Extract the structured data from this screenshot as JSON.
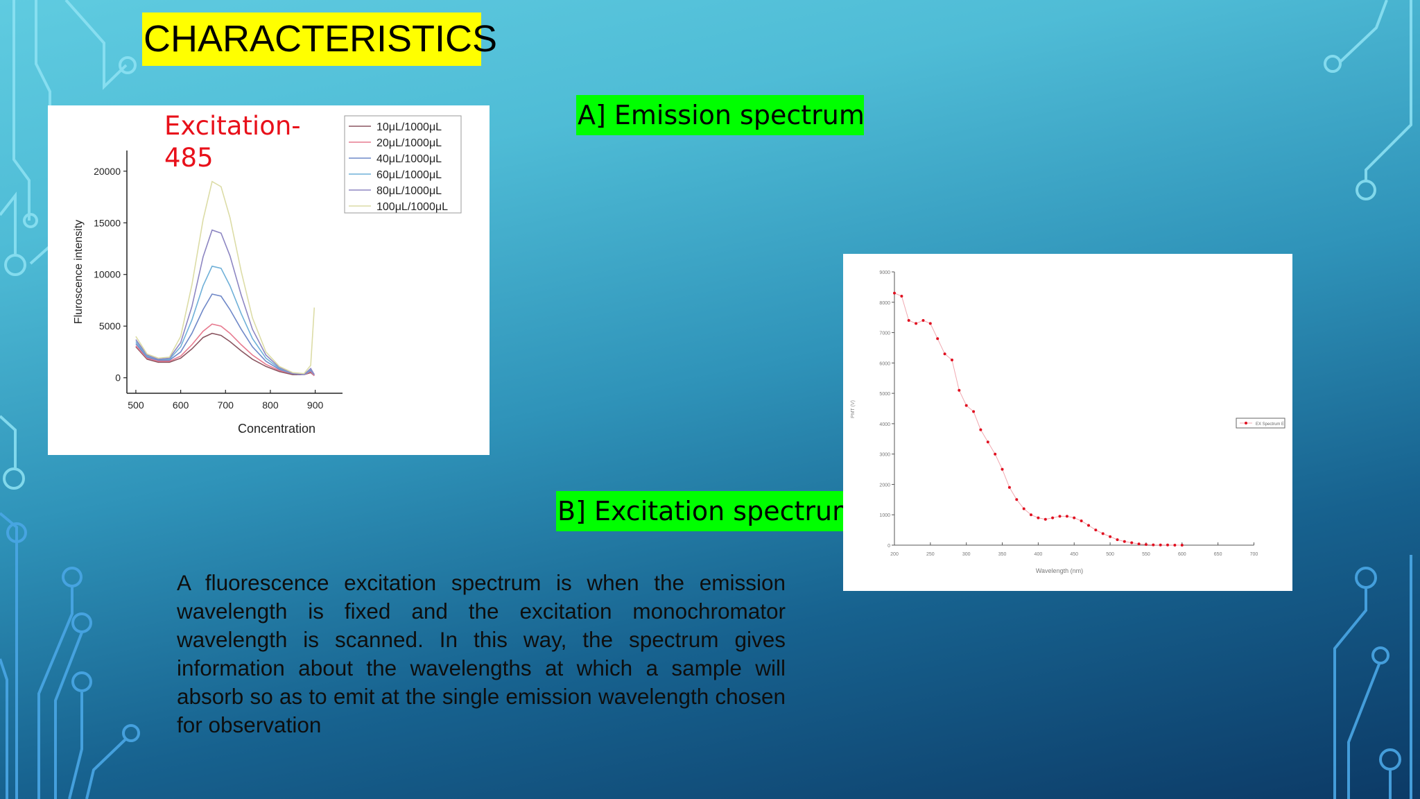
{
  "slide": {
    "title": "CHARACTERISTICS",
    "label_a": "A] Emission spectrum",
    "label_b": "B] Excitation spectrum",
    "paragraph": "A fluorescence excitation spectrum is when the emission wavelength is fixed and the excitation monochromator wavelength is scanned. In this way, the spectrum gives information about the wavelengths at which a sample will absorb so as to emit at the single emission wavelength chosen for observation"
  },
  "colors": {
    "title_bg": "#ffff00",
    "label_bg": "#00ff00",
    "annotation": "#e8101a"
  },
  "chart_data": [
    {
      "type": "line",
      "title": "",
      "annotation": [
        "Excitation-",
        "485"
      ],
      "xlabel": "Concentration",
      "ylabel": "Fluroscence intensity",
      "xlim": [
        480,
        930
      ],
      "ylim": [
        -1500,
        22000
      ],
      "xticks": [
        500,
        600,
        700,
        800,
        900
      ],
      "yticks": [
        0,
        5000,
        10000,
        15000,
        20000
      ],
      "grid": false,
      "legend": "top-right",
      "x": [
        500,
        525,
        550,
        575,
        600,
        625,
        650,
        670,
        690,
        710,
        735,
        760,
        790,
        820,
        850,
        875,
        890,
        898
      ],
      "series": [
        {
          "name": "10μL/1000μL",
          "color": "#8a5560",
          "values": [
            3000,
            1800,
            1500,
            1500,
            1900,
            2800,
            3900,
            4300,
            4100,
            3500,
            2600,
            1800,
            1100,
            600,
            300,
            300,
            500,
            200
          ]
        },
        {
          "name": "20μL/1000μL",
          "color": "#e77a8f",
          "values": [
            3100,
            1900,
            1600,
            1600,
            2100,
            3200,
            4500,
            5200,
            5000,
            4300,
            3200,
            2200,
            1300,
            700,
            400,
            300,
            600,
            200
          ]
        },
        {
          "name": "40μL/1000μL",
          "color": "#6f88c8",
          "values": [
            3300,
            2000,
            1700,
            1700,
            2500,
            4300,
            6600,
            8100,
            7900,
            6600,
            4700,
            3000,
            1600,
            800,
            400,
            300,
            700,
            300
          ]
        },
        {
          "name": "60μL/1000μL",
          "color": "#6fb0d8",
          "values": [
            3500,
            2100,
            1800,
            1800,
            3000,
            5600,
            8900,
            10800,
            10600,
            8900,
            6200,
            3800,
            1900,
            900,
            400,
            300,
            800,
            300
          ]
        },
        {
          "name": "80μL/1000μL",
          "color": "#8d86c2",
          "values": [
            3700,
            2200,
            1800,
            1900,
            3400,
            6900,
            11700,
            14300,
            14000,
            11800,
            8000,
            4700,
            2200,
            1000,
            400,
            300,
            900,
            300
          ]
        },
        {
          "name": "100μL/1000μL",
          "color": "#dcdca6",
          "values": [
            4000,
            2300,
            1900,
            2000,
            4000,
            9000,
            15300,
            19000,
            18500,
            15500,
            10300,
            5800,
            2500,
            1100,
            500,
            400,
            1200,
            6800
          ]
        }
      ]
    },
    {
      "type": "scatter",
      "title": "",
      "xlabel": "Wavelength (nm)",
      "ylabel": "PMT (V)",
      "xlim": [
        200,
        660
      ],
      "ylim": [
        0,
        9000
      ],
      "xticks": [
        200,
        250,
        300,
        350,
        400,
        450,
        500,
        550,
        600,
        650,
        700
      ],
      "yticks": [
        0,
        1000,
        2000,
        3000,
        4000,
        5000,
        6000,
        7000,
        8000,
        9000
      ],
      "grid": false,
      "legend": "right",
      "series": [
        {
          "name": "EX Spectrum E",
          "color": "#e01020",
          "x": [
            200,
            210,
            220,
            230,
            240,
            250,
            260,
            270,
            280,
            290,
            300,
            310,
            320,
            330,
            340,
            350,
            360,
            370,
            380,
            390,
            400,
            410,
            420,
            430,
            440,
            450,
            460,
            470,
            480,
            490,
            500,
            510,
            520,
            530,
            540,
            550,
            560,
            570,
            580,
            590,
            600
          ],
          "values": [
            8300,
            8200,
            7400,
            7300,
            7400,
            7300,
            6800,
            6300,
            6100,
            5100,
            4600,
            4400,
            3800,
            3400,
            3000,
            2500,
            1900,
            1500,
            1200,
            1000,
            900,
            850,
            900,
            950,
            950,
            900,
            800,
            650,
            500,
            380,
            280,
            180,
            120,
            80,
            40,
            20,
            10,
            5,
            5,
            0,
            0
          ]
        }
      ]
    }
  ]
}
